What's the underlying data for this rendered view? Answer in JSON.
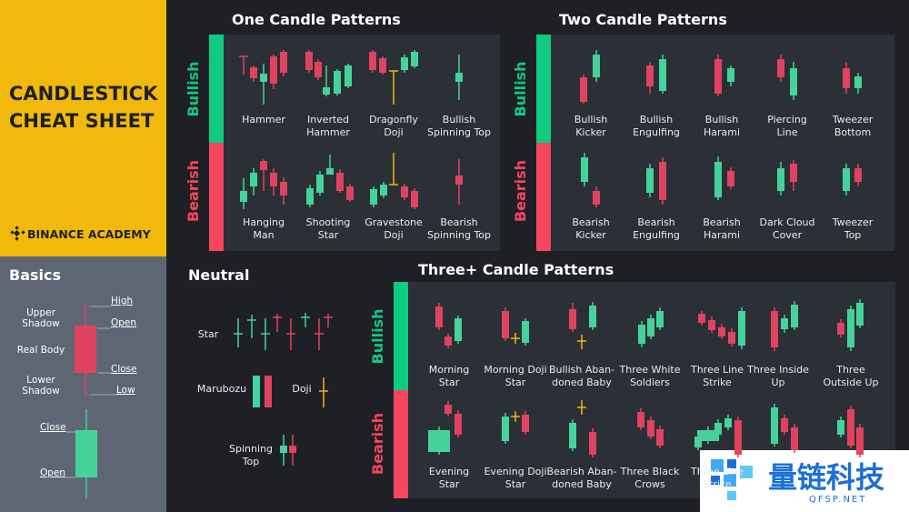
{
  "sidebar": {
    "title": "CANDLESTICK\nCHEAT SHEET",
    "brand": "BINANCE ACADEMY"
  },
  "basics": {
    "title": "Basics",
    "labels": [
      "Upper\nShadow",
      "Real Body",
      "Lower\nShadow",
      "High",
      "Open",
      "Close",
      "Low",
      "Close",
      "Open"
    ]
  },
  "neutral": {
    "title": "Neutral",
    "items": [
      "Star",
      "Marubozu",
      "Doji",
      "Spinning\nTop"
    ]
  },
  "one_candle": {
    "title": "One Candle Patterns",
    "bullish": {
      "label": "Bullish",
      "patterns": [
        "Hammer",
        "Inverted\nHammer",
        "Dragonfly\nDoji",
        "Bullish\nSpinning Top"
      ]
    },
    "bearish": {
      "label": "Bearish",
      "patterns": [
        "Hanging\nMan",
        "Shooting\nStar",
        "Gravestone\nDoji",
        "Bearish\nSpinning Top"
      ]
    }
  },
  "two_candle": {
    "title": "Two Candle Patterns",
    "bullish": {
      "label": "Bullish",
      "patterns": [
        "Bullish\nKicker",
        "Bullish\nEngulfing",
        "Bullish\nHarami",
        "Piercing\nLine",
        "Tweezer\nBottom"
      ]
    },
    "bearish": {
      "label": "Bearish",
      "patterns": [
        "Bearish\nKicker",
        "Bearish\nEngulfing",
        "Bearish\nHarami",
        "Dark Cloud\nCover",
        "Tweezer\nTop"
      ]
    }
  },
  "three_candle": {
    "title": "Three+ Candle Patterns",
    "bullish": {
      "label": "Bullish",
      "patterns": [
        "Morning\nStar",
        "Morning Doji\nStar",
        "Bullish Aban-\ndoned Baby",
        "Three White\nSoldiers",
        "Three Line\nStrike",
        "Three Inside\nUp",
        "Three\nOutside Up"
      ]
    },
    "bearish": {
      "label": "Bearish",
      "patterns": [
        "Evening\nStar",
        "Evening Doji\nStar",
        "Bearish Aban-\ndoned Baby",
        "Three Black\nCrows",
        "Three Line\nStrike"
      ]
    }
  },
  "watermark": {
    "name": "量链科技",
    "site": "QFSP.NET"
  }
}
